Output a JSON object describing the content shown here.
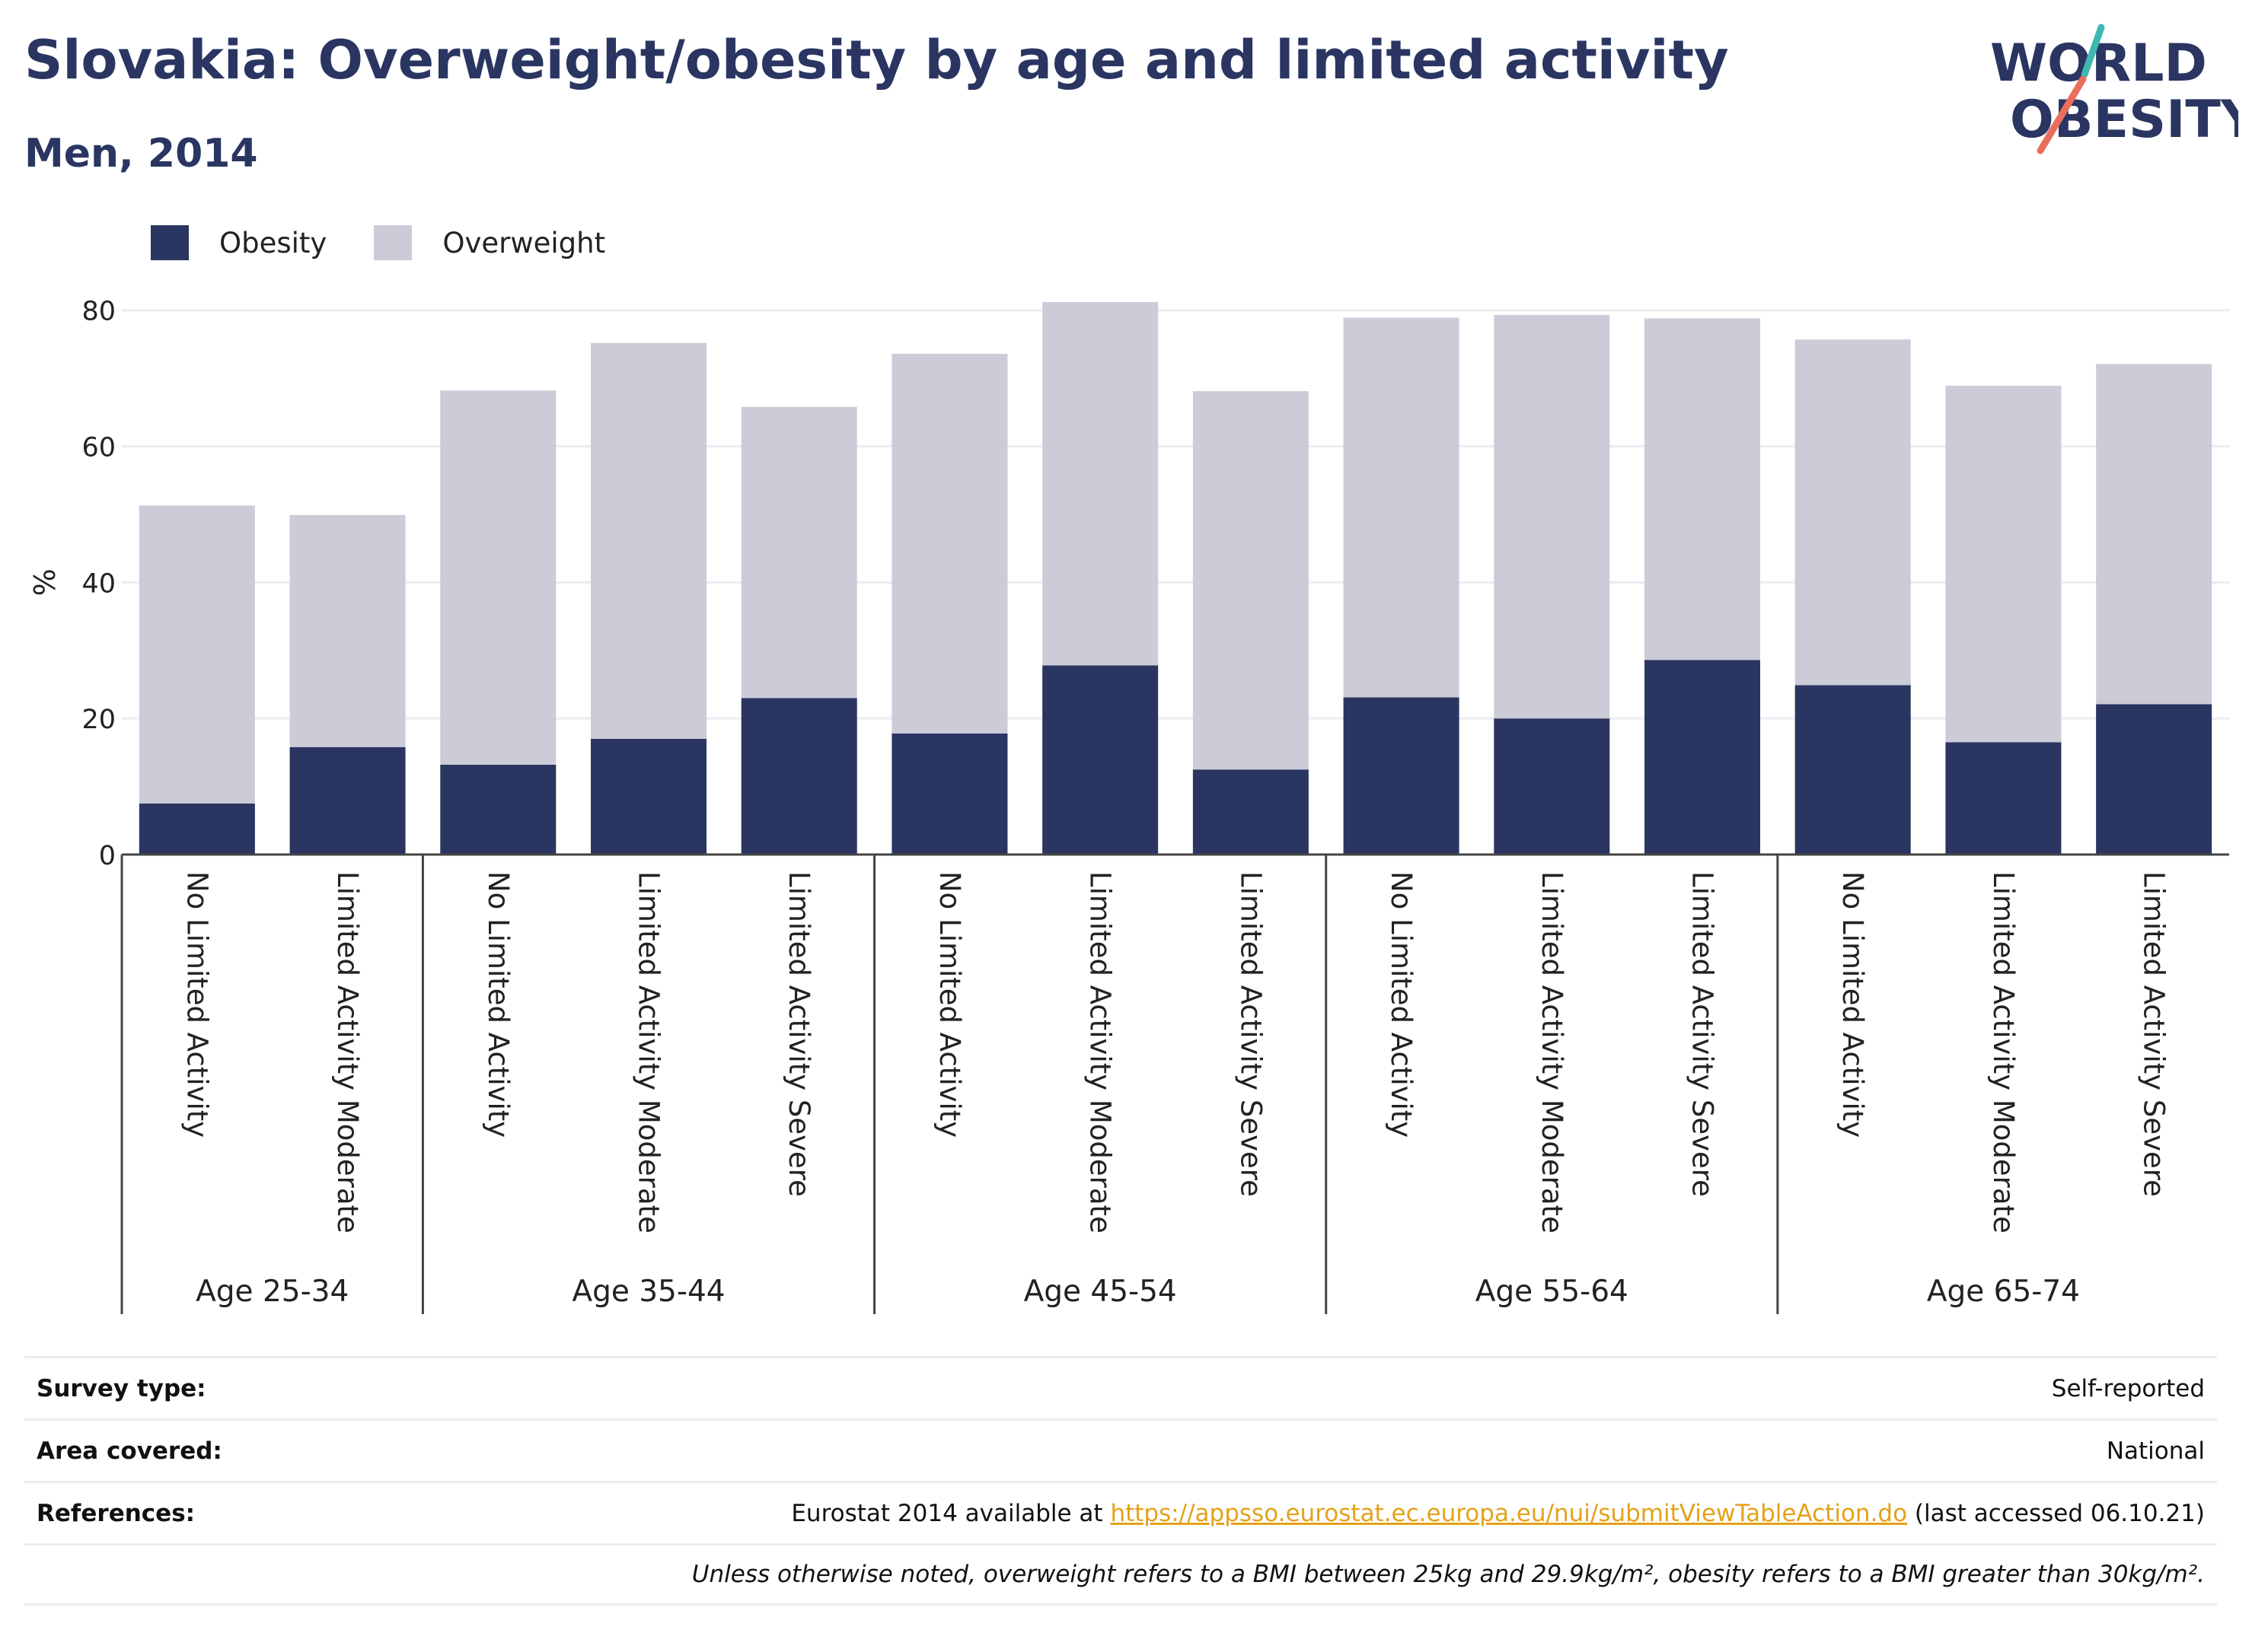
{
  "header": {
    "title": "Slovakia: Overweight/obesity by age and limited activity",
    "subtitle": "Men, 2014"
  },
  "logo": {
    "line1": "WORLD",
    "line2": "OBESITY"
  },
  "colors": {
    "obesity": "#2a3562",
    "overweight": "#cbccd8",
    "link": "#e3a21a",
    "title": "#2a3562"
  },
  "chart_data": {
    "type": "bar",
    "stacked": true,
    "ylabel": "%",
    "ylim": [
      0,
      85
    ],
    "yticks": [
      0,
      20,
      40,
      60,
      80
    ],
    "grid": true,
    "legend_position": "top-left",
    "groups": [
      {
        "label": "Age 25-34",
        "categories": [
          "No Limited Activity",
          "Limited Activity Moderate"
        ]
      },
      {
        "label": "Age 35-44",
        "categories": [
          "No Limited Activity",
          "Limited Activity Moderate",
          "Limited Activity Severe"
        ]
      },
      {
        "label": "Age 45-54",
        "categories": [
          "No Limited Activity",
          "Limited Activity Moderate",
          "Limited Activity Severe"
        ]
      },
      {
        "label": "Age 55-64",
        "categories": [
          "No Limited Activity",
          "Limited Activity Moderate",
          "Limited Activity Severe"
        ]
      },
      {
        "label": "Age 65-74",
        "categories": [
          "No Limited Activity",
          "Limited Activity Moderate",
          "Limited Activity Severe"
        ]
      }
    ],
    "series": [
      {
        "name": "Obesity",
        "values": [
          7.5,
          15.8,
          13.2,
          17.0,
          23.0,
          17.8,
          27.8,
          12.5,
          23.1,
          20.0,
          28.6,
          24.9,
          16.5,
          22.1
        ]
      },
      {
        "name": "Overweight",
        "values": [
          43.8,
          34.1,
          55.0,
          58.2,
          42.8,
          55.8,
          53.4,
          55.6,
          55.8,
          59.3,
          50.2,
          50.8,
          52.4,
          50.0
        ]
      }
    ]
  },
  "info": {
    "survey_key": "Survey type:",
    "survey_val": "Self-reported",
    "area_key": "Area covered:",
    "area_val": "National",
    "refs_key": "References:",
    "refs_pre": "Eurostat 2014 available at ",
    "refs_link": "https://appsso.eurostat.ec.europa.eu/nui/submitViewTableAction.do",
    "refs_post": " (last accessed 06.10.21)",
    "note": "Unless otherwise noted, overweight refers to a BMI between 25kg and 29.9kg/m², obesity refers to a BMI greater than 30kg/m²."
  }
}
